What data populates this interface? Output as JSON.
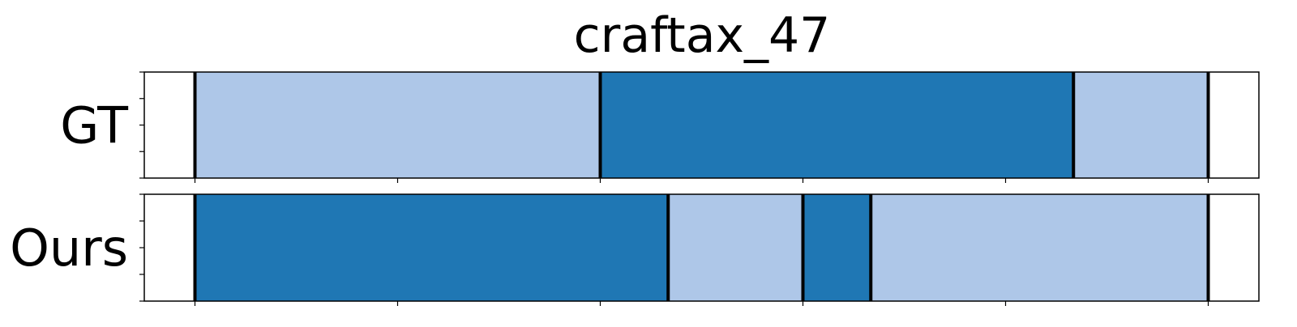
{
  "chart_data": {
    "type": "segment-timeline",
    "title": "craftax_47",
    "rows": [
      {
        "label": "GT",
        "segments": [
          {
            "start": 0.0,
            "end": 0.4,
            "class": "light"
          },
          {
            "start": 0.4,
            "end": 0.867,
            "class": "dark"
          },
          {
            "start": 0.867,
            "end": 1.0,
            "class": "light"
          }
        ]
      },
      {
        "label": "Ours",
        "segments": [
          {
            "start": 0.0,
            "end": 0.467,
            "class": "dark"
          },
          {
            "start": 0.467,
            "end": 0.6,
            "class": "light"
          },
          {
            "start": 0.6,
            "end": 0.667,
            "class": "dark"
          },
          {
            "start": 0.667,
            "end": 1.0,
            "class": "light"
          }
        ]
      }
    ],
    "xlim": [
      -0.05,
      1.05
    ],
    "xticks": [
      0.0,
      0.2,
      0.4,
      0.6,
      0.8,
      1.0
    ],
    "yticks_per_row": 5,
    "tick_labels_shown": false,
    "grid": false,
    "colors": {
      "dark": "#1f77b4",
      "light": "#aec7e8",
      "boundary": "#000000",
      "frame": "#000000"
    }
  }
}
